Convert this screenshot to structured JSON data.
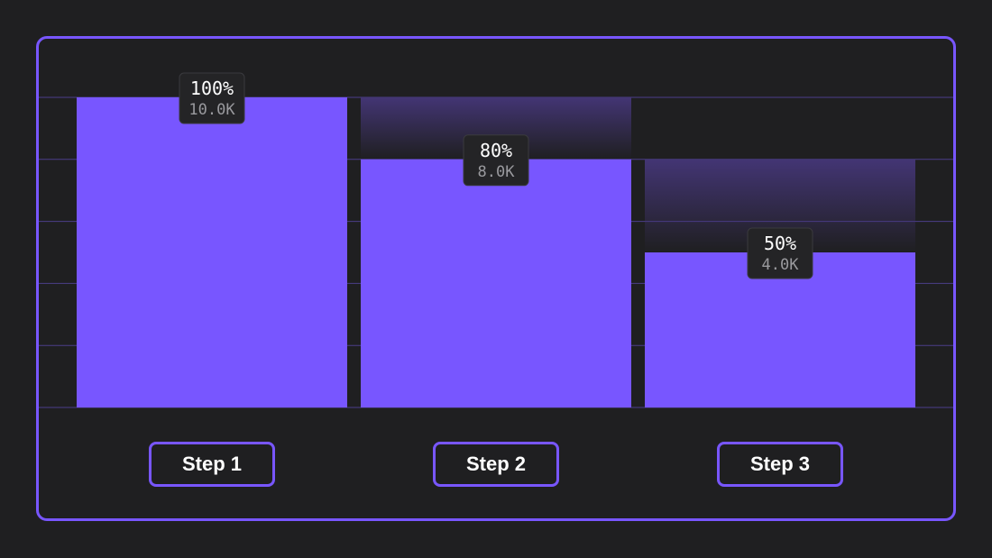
{
  "colors": {
    "background": "#1f1f21",
    "accent": "#7856ff",
    "drop_off": "#433574",
    "gridline": "#4b3e8a",
    "label_bg": "#242426",
    "label_value_text": "#9a9a9e"
  },
  "chart_data": {
    "type": "bar",
    "subtype": "funnel",
    "title": "",
    "xlabel": "",
    "ylabel": "",
    "ylim": [
      0,
      100
    ],
    "grid": true,
    "gridline_count": 6,
    "categories": [
      "Step 1",
      "Step 2",
      "Step 3"
    ],
    "values": [
      100,
      80,
      50
    ],
    "counts": [
      10000,
      8000,
      4000
    ],
    "percent_labels": [
      "100%",
      "80%",
      "50%"
    ],
    "count_labels": [
      "10.0K",
      "8.0K",
      "4.0K"
    ]
  }
}
